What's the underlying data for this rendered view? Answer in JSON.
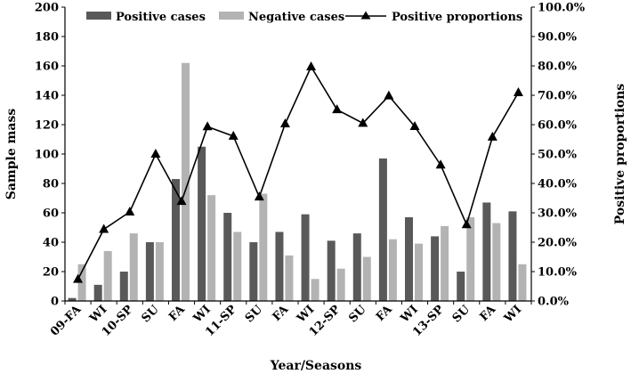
{
  "chart_data": {
    "type": "bar+line",
    "title": "",
    "xlabel": "Year/Seasons",
    "ylabel": "Sample mass",
    "y2label": "Positive proportions",
    "ylim": [
      0,
      200
    ],
    "yticks": [
      "0",
      "20",
      "40",
      "60",
      "80",
      "100",
      "120",
      "140",
      "160",
      "180",
      "200"
    ],
    "y2lim": [
      0,
      1
    ],
    "y2ticks": [
      "0.0%",
      "10.0%",
      "20.0%",
      "30.0%",
      "40.0%",
      "50.0%",
      "60.0%",
      "70.0%",
      "80.0%",
      "90.0%",
      "100.0%"
    ],
    "categories": [
      "09-FA",
      "WI",
      "10-SP",
      "SU",
      "FA",
      "WI",
      "11-SP",
      "SU",
      "FA",
      "WI",
      "12-SP",
      "SU",
      "FA",
      "WI",
      "13-SP",
      "SU",
      "FA",
      "WI"
    ],
    "legend_position": "top",
    "series": [
      {
        "name": "Positive cases",
        "kind": "bar",
        "axis": "left",
        "color": "#595959",
        "values": [
          2,
          11,
          20,
          40,
          83,
          105,
          60,
          40,
          47,
          59,
          41,
          46,
          97,
          57,
          44,
          20,
          67,
          61
        ]
      },
      {
        "name": "Negative cases",
        "kind": "bar",
        "axis": "left",
        "color": "#b3b3b3",
        "values": [
          25,
          34,
          46,
          40,
          162,
          72,
          47,
          73,
          31,
          15,
          22,
          30,
          42,
          39,
          51,
          57,
          53,
          25
        ]
      },
      {
        "name": "Positive proportions",
        "kind": "line",
        "axis": "right",
        "color": "#000000",
        "values": [
          0.074,
          0.244,
          0.303,
          0.5,
          0.339,
          0.593,
          0.561,
          0.354,
          0.603,
          0.797,
          0.651,
          0.605,
          0.698,
          0.594,
          0.463,
          0.26,
          0.558,
          0.709
        ]
      }
    ]
  }
}
